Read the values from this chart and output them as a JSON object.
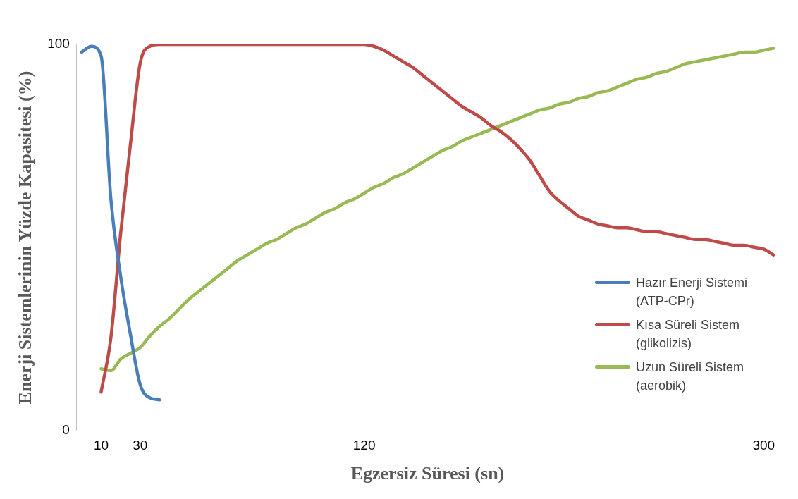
{
  "chart_data": {
    "type": "line",
    "xlabel": "Egzersiz Süresi (sn)",
    "ylabel": "Enerji Sistemlerinin Yüzde Kapasitesi (%)",
    "categories": [
      null,
      null,
      "10",
      null,
      null,
      null,
      "30",
      null,
      null,
      null,
      null,
      null,
      null,
      null,
      null,
      null,
      null,
      null,
      null,
      null,
      null,
      null,
      null,
      null,
      null,
      null,
      null,
      null,
      null,
      "120",
      null,
      null,
      null,
      null,
      null,
      null,
      null,
      null,
      null,
      null,
      null,
      null,
      null,
      null,
      null,
      null,
      null,
      null,
      null,
      null,
      null,
      null,
      null,
      null,
      null,
      null,
      null,
      null,
      null,
      null,
      null,
      null,
      null,
      null,
      null,
      null,
      null,
      null,
      null,
      null,
      "300",
      null
    ],
    "series": [
      {
        "name": "Hazır Enerji Sistemi (ATP-CPr)",
        "color": "#4a7ebb",
        "values": [
          98,
          99.5,
          97,
          60,
          40,
          25,
          12,
          8.5,
          8,
          null,
          null,
          null,
          null,
          null,
          null,
          null,
          null,
          null,
          null,
          null,
          null,
          null,
          null,
          null,
          null,
          null,
          null,
          null,
          null,
          null,
          null,
          null,
          null,
          null,
          null,
          null,
          null,
          null,
          null,
          null,
          null,
          null,
          null,
          null,
          null,
          null,
          null,
          null,
          null,
          null,
          null,
          null,
          null,
          null,
          null,
          null,
          null,
          null,
          null,
          null,
          null,
          null,
          null,
          null,
          null,
          null,
          null,
          null,
          null,
          null,
          null,
          null
        ]
      },
      {
        "name": "Kısa Süreli Sistem (glikolizis)",
        "color": "#be4b48",
        "values": [
          null,
          null,
          10,
          24,
          51,
          74,
          95,
          99.5,
          100,
          100,
          100,
          100,
          100,
          100,
          100,
          100,
          100,
          100,
          100,
          100,
          100,
          100,
          100,
          100,
          100,
          100,
          100,
          100,
          100,
          100,
          99.5,
          98.5,
          97,
          95.5,
          94,
          92,
          90,
          88,
          86,
          84,
          82.5,
          81,
          79,
          77.5,
          75.5,
          73,
          70,
          66,
          62,
          59.5,
          57.5,
          55.5,
          54.5,
          53.5,
          53,
          52.5,
          52.5,
          52,
          51.5,
          51.5,
          51,
          50.5,
          50,
          49.5,
          49.5,
          49,
          48.5,
          48,
          48,
          47.5,
          47,
          45.5
        ]
      },
      {
        "name": "Uzun Süreli Sistem (aerobik)",
        "color": "#98b954",
        "values": [
          null,
          null,
          16,
          15.5,
          18.5,
          20,
          21.5,
          24.5,
          27,
          29,
          31.5,
          34,
          36,
          38,
          40,
          42,
          44,
          45.5,
          47,
          48.5,
          49.5,
          51,
          52.5,
          53.5,
          55,
          56.5,
          57.5,
          59,
          60,
          61.5,
          63,
          64,
          65.5,
          66.5,
          68,
          69.5,
          71,
          72.5,
          73.5,
          75,
          76,
          77,
          78,
          79,
          80,
          81,
          82,
          83,
          83.5,
          84.5,
          85,
          86,
          86.5,
          87.5,
          88,
          89,
          90,
          91,
          91.5,
          92.5,
          93,
          94,
          95,
          95.5,
          96,
          96.5,
          97,
          97.5,
          98,
          98,
          98.5,
          99
        ]
      }
    ],
    "ylim": [
      0,
      100
    ],
    "yticks": [
      0,
      100
    ],
    "grid": false,
    "legend": "right",
    "marker": "none",
    "line_style": "solid"
  }
}
